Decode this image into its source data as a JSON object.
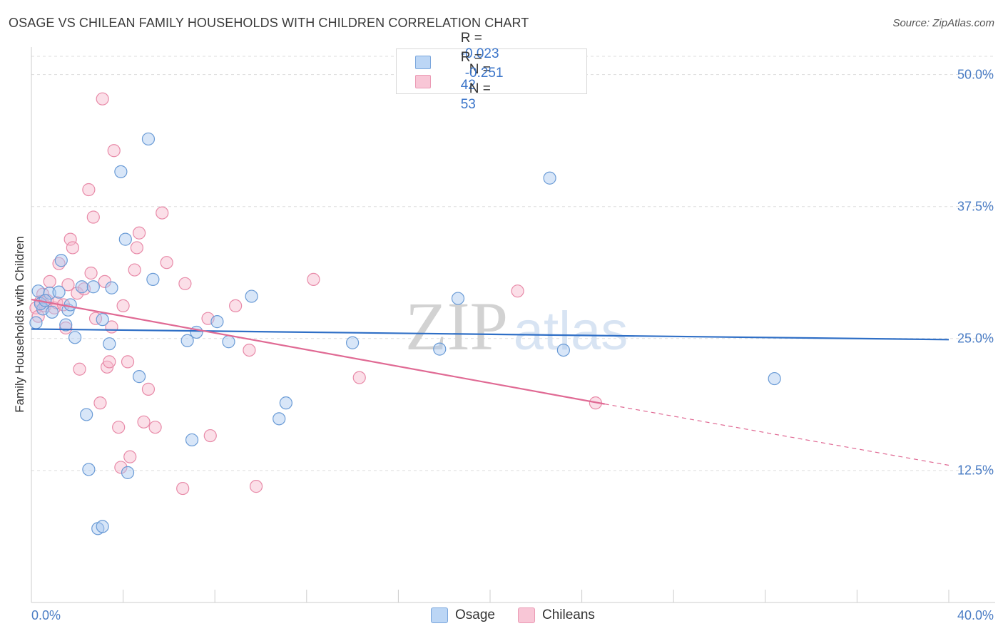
{
  "title": "OSAGE VS CHILEAN FAMILY HOUSEHOLDS WITH CHILDREN CORRELATION CHART",
  "source": "Source: ZipAtlas.com",
  "watermark": {
    "zip": "ZIP",
    "atlas": "atlas"
  },
  "legend": {
    "osage": {
      "r_label": "R =",
      "r_value": "-0.023",
      "n_label": "N =",
      "n_value": "42"
    },
    "chileans": {
      "r_label": "R =",
      "r_value": "-0.251",
      "n_label": "N =",
      "n_value": "53"
    }
  },
  "colors": {
    "osage_fill": "#a8c8f0",
    "osage_stroke": "#6a9bd6",
    "osage_line": "#2f6fc6",
    "chileans_fill": "#f6b8cb",
    "chileans_stroke": "#e88aa8",
    "chileans_line": "#e06a94",
    "tick_text": "#4a7cc4",
    "grid": "#dddddd"
  },
  "chart_data": {
    "type": "scatter",
    "title": "OSAGE VS CHILEAN FAMILY HOUSEHOLDS WITH CHILDREN CORRELATION CHART",
    "xlabel": "",
    "ylabel": "Family Households with Children",
    "xlim": [
      0,
      40
    ],
    "ylim": [
      0,
      52
    ],
    "x_tick_labels": [
      "0.0%",
      "40.0%"
    ],
    "y_ticks": [
      12.5,
      25.0,
      37.5,
      50.0
    ],
    "y_tick_labels": [
      "12.5%",
      "25.0%",
      "37.5%",
      "50.0%"
    ],
    "series": [
      {
        "name": "Osage",
        "points": [
          [
            0.3,
            29.5
          ],
          [
            0.5,
            27.8
          ],
          [
            0.8,
            29.3
          ],
          [
            0.9,
            27.5
          ],
          [
            1.2,
            29.4
          ],
          [
            1.3,
            32.4
          ],
          [
            1.5,
            26.3
          ],
          [
            1.6,
            27.7
          ],
          [
            1.7,
            28.2
          ],
          [
            1.9,
            25.1
          ],
          [
            2.2,
            29.9
          ],
          [
            2.4,
            17.8
          ],
          [
            2.5,
            12.6
          ],
          [
            2.7,
            29.9
          ],
          [
            2.9,
            7.0
          ],
          [
            3.1,
            7.2
          ],
          [
            3.1,
            26.8
          ],
          [
            3.4,
            24.5
          ],
          [
            3.5,
            29.8
          ],
          [
            3.9,
            40.8
          ],
          [
            4.1,
            34.4
          ],
          [
            4.2,
            12.3
          ],
          [
            4.7,
            21.4
          ],
          [
            5.1,
            43.9
          ],
          [
            5.3,
            30.6
          ],
          [
            6.8,
            24.8
          ],
          [
            7.0,
            15.4
          ],
          [
            7.2,
            25.6
          ],
          [
            8.1,
            26.6
          ],
          [
            8.6,
            24.7
          ],
          [
            9.6,
            29.0
          ],
          [
            10.8,
            17.4
          ],
          [
            11.1,
            18.9
          ],
          [
            14.0,
            24.6
          ],
          [
            17.8,
            24.0
          ],
          [
            18.6,
            28.8
          ],
          [
            22.6,
            40.2
          ],
          [
            23.2,
            23.9
          ],
          [
            32.4,
            21.2
          ],
          [
            0.2,
            26.5
          ],
          [
            0.4,
            28.3
          ],
          [
            0.6,
            28.6
          ]
        ]
      },
      {
        "name": "Chileans",
        "points": [
          [
            0.2,
            27.9
          ],
          [
            0.3,
            27.1
          ],
          [
            0.4,
            28.5
          ],
          [
            0.5,
            29.2
          ],
          [
            0.6,
            28.1
          ],
          [
            0.7,
            28.6
          ],
          [
            0.8,
            30.4
          ],
          [
            1.0,
            27.9
          ],
          [
            1.1,
            28.4
          ],
          [
            1.2,
            32.1
          ],
          [
            1.4,
            28.2
          ],
          [
            1.5,
            26.0
          ],
          [
            1.6,
            30.1
          ],
          [
            1.7,
            34.4
          ],
          [
            1.8,
            33.6
          ],
          [
            2.0,
            29.3
          ],
          [
            2.1,
            22.1
          ],
          [
            2.3,
            29.7
          ],
          [
            2.5,
            39.1
          ],
          [
            2.6,
            31.2
          ],
          [
            2.7,
            36.5
          ],
          [
            2.8,
            26.9
          ],
          [
            3.0,
            18.9
          ],
          [
            3.1,
            47.7
          ],
          [
            3.2,
            30.4
          ],
          [
            3.3,
            22.3
          ],
          [
            3.4,
            22.8
          ],
          [
            3.5,
            26.1
          ],
          [
            3.6,
            42.8
          ],
          [
            3.8,
            16.6
          ],
          [
            3.9,
            12.8
          ],
          [
            4.0,
            28.1
          ],
          [
            4.2,
            22.8
          ],
          [
            4.3,
            13.8
          ],
          [
            4.5,
            31.5
          ],
          [
            4.6,
            33.6
          ],
          [
            4.7,
            35.0
          ],
          [
            4.9,
            17.1
          ],
          [
            5.1,
            20.2
          ],
          [
            5.4,
            16.6
          ],
          [
            5.7,
            36.9
          ],
          [
            5.9,
            32.2
          ],
          [
            6.6,
            10.8
          ],
          [
            6.7,
            30.2
          ],
          [
            7.7,
            26.9
          ],
          [
            7.8,
            15.8
          ],
          [
            8.9,
            28.1
          ],
          [
            9.5,
            23.9
          ],
          [
            9.8,
            11.0
          ],
          [
            12.3,
            30.6
          ],
          [
            14.3,
            21.3
          ],
          [
            21.2,
            29.5
          ],
          [
            24.6,
            18.9
          ]
        ]
      }
    ],
    "trend_lines": [
      {
        "name": "Osage",
        "x": [
          0,
          40
        ],
        "y": [
          25.9,
          24.9
        ]
      },
      {
        "name": "Chileans",
        "x": [
          0,
          25.0
        ],
        "y": [
          28.7,
          18.8
        ],
        "dashed_extension": {
          "x": [
            25.0,
            40
          ],
          "y": [
            18.8,
            13.0
          ]
        }
      }
    ]
  },
  "bottom_legend": {
    "osage": "Osage",
    "chileans": "Chileans"
  }
}
